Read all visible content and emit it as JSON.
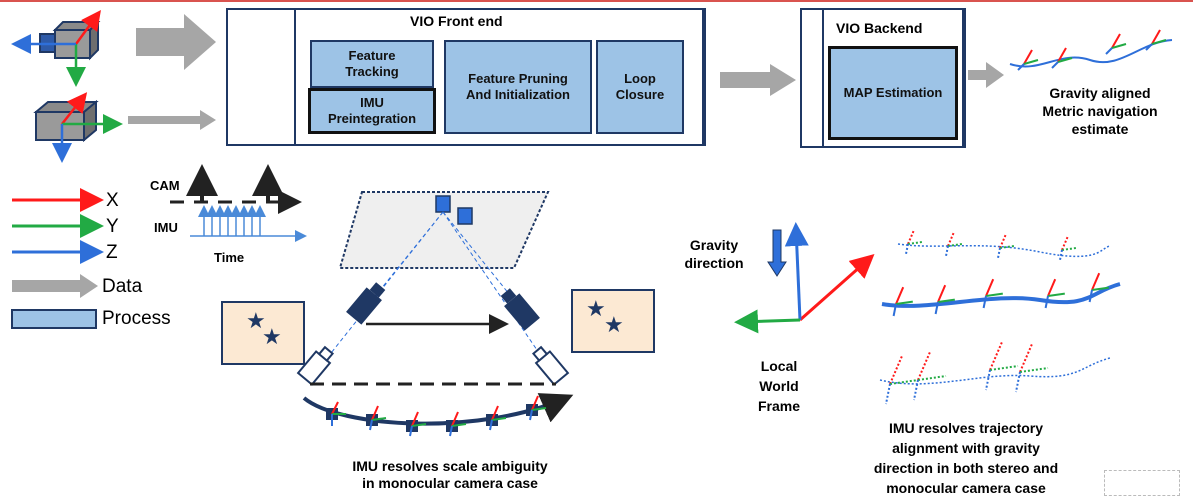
{
  "frontend": {
    "title": "VIO Front end",
    "feature_tracking": "Feature\nTracking",
    "imu_preintegration": "IMU\nPreintegration",
    "feature_pruning": "Feature Pruning\nAnd Initialization",
    "loop_closure": "Loop\nClosure"
  },
  "backend": {
    "title": "VIO Backend",
    "map_estimation": "MAP Estimation"
  },
  "output_label": "Gravity aligned\nMetric navigation\nestimate",
  "legend": {
    "x": "X",
    "y": "Y",
    "z": "Z",
    "data": "Data",
    "process": "Process"
  },
  "timing": {
    "cam": "CAM",
    "imu": "IMU",
    "time": "Time"
  },
  "gravity_direction": "Gravity\ndirection",
  "local_world_frame": "Local\nWorld\nFrame",
  "scale_caption": "IMU resolves scale ambiguity\nin monocular camera case",
  "alignment_caption": "IMU resolves trajectory\nalignment with gravity\ndirection in both stereo and\nmonocular camera case",
  "colors": {
    "x_axis": "#ff1a1a",
    "y_axis": "#22aa44",
    "z_axis": "#2e6fd9",
    "process_fill": "#9dc3e6",
    "frame_border": "#1f3864",
    "data_arrow": "#a6a6a6",
    "image_plane": "#fce9d3"
  }
}
